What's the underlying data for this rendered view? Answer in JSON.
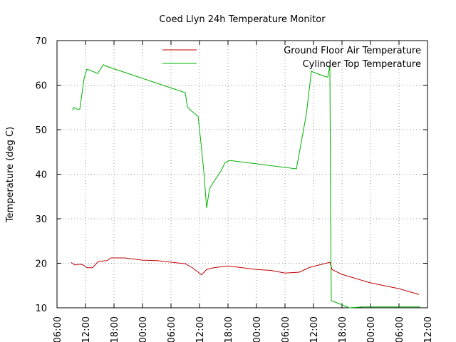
{
  "chart_data": {
    "type": "line",
    "title": "Coed Llyn 24h Temperature Monitor",
    "ylabel": "Temperature (deg C)",
    "xlim": [
      0,
      78
    ],
    "xticks": [
      {
        "value": 0,
        "label": "06:00"
      },
      {
        "value": 6,
        "label": "12:00"
      },
      {
        "value": 12,
        "label": "18:00"
      },
      {
        "value": 18,
        "label": "00:00"
      },
      {
        "value": 24,
        "label": "06:00"
      },
      {
        "value": 30,
        "label": "12:00"
      },
      {
        "value": 36,
        "label": "18:00"
      },
      {
        "value": 42,
        "label": "00:00"
      },
      {
        "value": 48,
        "label": "06:00"
      },
      {
        "value": 54,
        "label": "12:00"
      },
      {
        "value": 60,
        "label": "18:00"
      },
      {
        "value": 66,
        "label": "00:00"
      },
      {
        "value": 72,
        "label": "06:00"
      },
      {
        "value": 78,
        "label": "12:00"
      }
    ],
    "ylim": [
      10,
      70
    ],
    "yticks": [
      10,
      20,
      30,
      40,
      50,
      60,
      70
    ],
    "grid": true,
    "legend": "top-right",
    "series": [
      {
        "name": "Ground Floor Air Temperature",
        "color": "#c00000",
        "x": [
          3.0,
          3.75,
          4.8,
          5.55,
          6.3,
          7.5,
          8.7,
          10.5,
          11.4,
          14.25,
          18,
          21,
          27,
          28.5,
          30.45,
          31.5,
          33,
          36,
          39,
          42,
          45,
          48,
          51,
          53.25,
          56.25,
          57.45,
          57.9,
          60,
          66,
          72,
          76.2
        ],
        "values": [
          20.2,
          19.6,
          19.8,
          19.6,
          19.0,
          19.0,
          20.4,
          20.6,
          21.2,
          21.2,
          20.7,
          20.6,
          19.9,
          19.0,
          17.4,
          18.6,
          19.0,
          19.4,
          19.0,
          18.6,
          18.4,
          17.8,
          18.0,
          19.1,
          19.9,
          20.2,
          18.6,
          17.5,
          15.6,
          14.3,
          13.0
        ]
      },
      {
        "name": "Cylinder Top Temperature",
        "color": "#00b000",
        "x": [
          3.3,
          3.45,
          4.2,
          4.8,
          5.7,
          6.3,
          7.5,
          8.55,
          9.75,
          10.5,
          27.0,
          27.45,
          28.2,
          29.7,
          30.3,
          30.9,
          31.5,
          32.1,
          33.0,
          34.5,
          35.4,
          36.3,
          50.4,
          52.5,
          53.55,
          56.25,
          57.0,
          57.45,
          57.6,
          57.75,
          59.25,
          61.5,
          64.5,
          76.5
        ],
        "values": [
          54.3,
          55.0,
          54.6,
          54.6,
          61.5,
          63.6,
          63.1,
          62.6,
          64.6,
          64.2,
          58.3,
          55.1,
          54.3,
          53.0,
          47.1,
          40.7,
          32.4,
          36.7,
          38.3,
          40.7,
          42.6,
          43.1,
          41.2,
          53.5,
          63.1,
          62.0,
          61.8,
          64.4,
          31.1,
          11.6,
          11.0,
          10.0,
          10.2,
          10.2
        ]
      }
    ]
  }
}
